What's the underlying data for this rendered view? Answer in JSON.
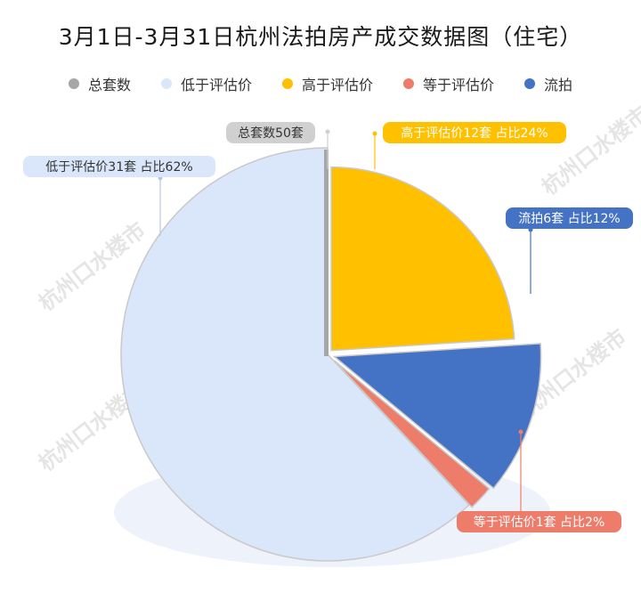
{
  "title": "3月1日-3月31日杭州法拍房产成交数据图（住宅）",
  "watermark": "杭州口水楼市",
  "chart_data": {
    "type": "pie",
    "total": {
      "label": "总套数50套",
      "name": "总套数",
      "value": 50,
      "color": "#a6a6a6"
    },
    "legend": [
      "总套数",
      "低于评估价",
      "高于评估价",
      "等于评估价",
      "流拍"
    ],
    "slices": [
      {
        "name": "高于评估价",
        "value": 12,
        "percent": 24,
        "label": "高于评估价12套 占比24%",
        "color": "#ffc000"
      },
      {
        "name": "流拍",
        "value": 6,
        "percent": 12,
        "label": "流拍6套 占比12%",
        "color": "#4472c4"
      },
      {
        "name": "等于评估价",
        "value": 1,
        "percent": 2,
        "label": "等于评估价1套 占比2%",
        "color": "#ed7d6a"
      },
      {
        "name": "低于评估价",
        "value": 31,
        "percent": 62,
        "label": "低于评估价31套 占比62%",
        "color": "#dae6fa"
      }
    ]
  }
}
